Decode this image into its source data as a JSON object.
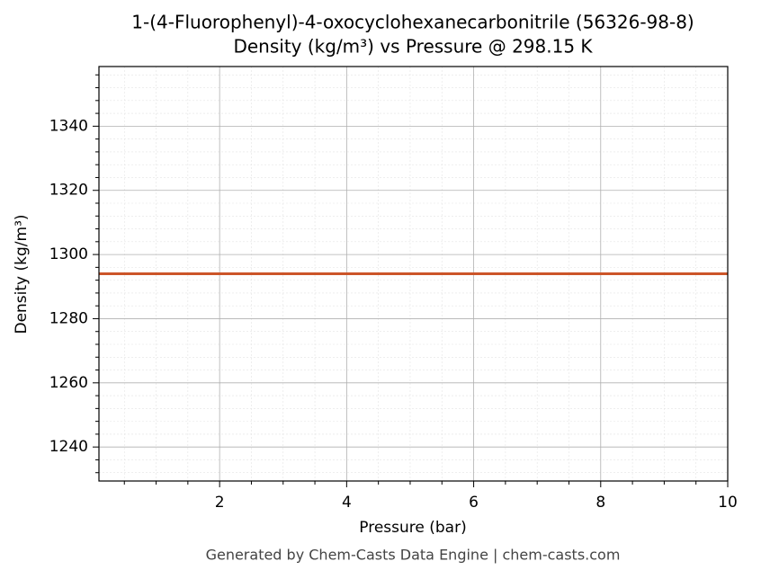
{
  "chart_data": {
    "type": "line",
    "title": "1-(4-Fluorophenyl)-4-oxocyclohexanecarbonitrile (56326-98-8)",
    "subtitle": "Density (kg/m³) vs Pressure @ 298.15 K",
    "xlabel": "Pressure (bar)",
    "ylabel": "Density (kg/m³)",
    "footer": "Generated by Chem-Casts Data Engine | chem-casts.com",
    "x": [
      0.1,
      10
    ],
    "series": [
      {
        "color": "#cc5529",
        "values": [
          1294,
          1294
        ]
      }
    ],
    "xlim": [
      0.1,
      10
    ],
    "ylim": [
      1229.4,
      1358.6
    ],
    "xticks": [
      2,
      4,
      6,
      8,
      10
    ],
    "yticks": [
      1240,
      1260,
      1280,
      1300,
      1320,
      1340
    ],
    "xminorticks": [
      0.5,
      1,
      1.5,
      2.5,
      3,
      3.5,
      4.5,
      5,
      5.5,
      6.5,
      7,
      7.5,
      8.5,
      9,
      9.5
    ],
    "yminorticks": [
      1232,
      1236,
      1244,
      1248,
      1252,
      1256,
      1264,
      1268,
      1272,
      1276,
      1284,
      1288,
      1292,
      1296,
      1304,
      1308,
      1312,
      1316,
      1324,
      1328,
      1332,
      1336,
      1344,
      1348,
      1352,
      1356
    ],
    "grid": true
  }
}
